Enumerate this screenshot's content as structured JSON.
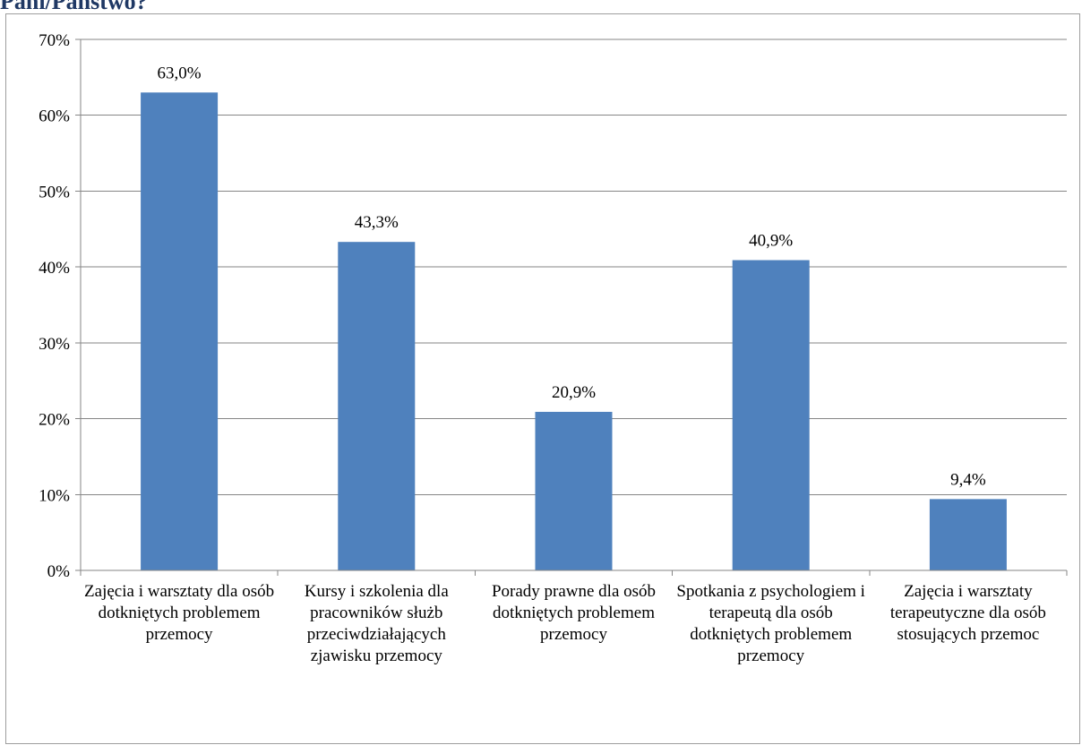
{
  "heading": "Pani/Państwo?",
  "chart_data": {
    "type": "bar",
    "categories": [
      "Zajęcia i warsztaty dla osób dotkniętych problemem przemocy",
      "Kursy i szkolenia dla pracowników służb przeciwdziałających zjawisku przemocy",
      "Porady prawne dla osób dotkniętych problemem przemocy",
      "Spotkania z psychologiem i terapeutą dla osób dotkniętych problemem przemocy",
      "Zajęcia i warsztaty terapeutyczne dla osób stosujących przemoc"
    ],
    "values": [
      63.0,
      43.3,
      20.9,
      40.9,
      9.4
    ],
    "data_labels": [
      "63,0%",
      "43,3%",
      "20,9%",
      "40,9%",
      "9,4%"
    ],
    "ylim": [
      0,
      70
    ],
    "y_ticks": [
      0,
      10,
      20,
      30,
      40,
      50,
      60,
      70
    ],
    "y_tick_labels": [
      "0%",
      "10%",
      "20%",
      "30%",
      "40%",
      "50%",
      "60%",
      "70%"
    ],
    "title": "",
    "xlabel": "",
    "ylabel": "",
    "grid": true,
    "legend": "none",
    "bar_color": "#4f81bd",
    "grid_color": "#868686"
  }
}
